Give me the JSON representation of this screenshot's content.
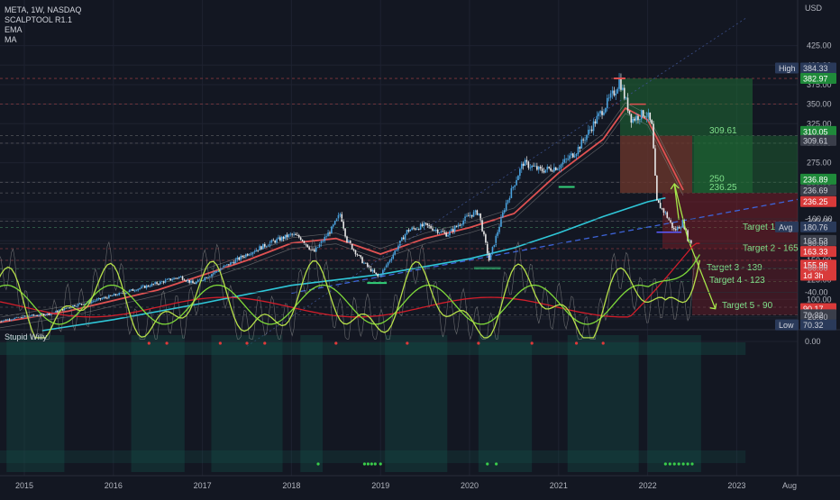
{
  "header": {
    "symbol_line": "META, 1W, NASDAQ",
    "indicators": [
      "SCALPTOOL R1.1",
      "EMA",
      "MA"
    ],
    "currency": "USD"
  },
  "oscillator": {
    "title": "Stupid Willy",
    "ticks": [
      "0.00",
      "-20.00",
      "-40.00",
      "-60.00",
      "-80.00",
      "-100.00"
    ]
  },
  "x_axis": {
    "ticks": [
      "2015",
      "2016",
      "2017",
      "2018",
      "2019",
      "2020",
      "2021",
      "2022",
      "2023",
      "Aug"
    ]
  },
  "price_axis": {
    "ticks": [
      "425.00",
      "400.00",
      "375.00",
      "350.00",
      "325.00",
      "300.00",
      "275.00",
      "250.00",
      "225.00",
      "200.00",
      "175.00",
      "150.00",
      "125.00",
      "100.00",
      "75.00"
    ]
  },
  "badges": {
    "high_label": "High",
    "high_value": "384.33",
    "b_382": "382.97",
    "b_310": "310.05",
    "b_309": "309.61",
    "b_236a": "236.89",
    "b_236b": "236.69",
    "b_236c": "236.25",
    "avg_label": "Avg",
    "avg_value": "180.76",
    "b_163a": "163.53",
    "b_163b": "163.33",
    "b_155": "155.96",
    "b_155_sub": "1d 3h",
    "b_90": "90.17",
    "b_70": "70.32",
    "low_label": "Low",
    "low_value": "70.32"
  },
  "annotations": {
    "level_309": "309.61",
    "level_250": "250",
    "level_236": "236.25",
    "target1": "Target 1 - 192",
    "target2": "Target 2 - 165",
    "target3": "Target 3 - 139",
    "target4": "Target 4 - 123",
    "target5": "Target 5 - 90"
  },
  "colors": {
    "background": "#131722",
    "candle_up": "#4aa3df",
    "candle_down": "#e8e8e8",
    "ema_red": "#e05252",
    "ma_cyan": "#2fc7d8",
    "trend_blue": "#3d63d8",
    "support_green": "#33d17a",
    "target_lime": "#a6e84b",
    "osc_red": "#d21e2b",
    "osc_green": "#7fd93a",
    "osc_lime": "#b7e04a"
  },
  "chart_data": [
    {
      "type": "candlestick",
      "title": "META, 1W, NASDAQ",
      "ylabel": "USD",
      "ylim": [
        65,
        435
      ],
      "x_ticks": [
        "2015",
        "2016",
        "2017",
        "2018",
        "2019",
        "2020",
        "2021",
        "2022",
        "2023",
        "Aug"
      ],
      "high": 384.33,
      "low": 70.32,
      "price_path": [
        [
          2014.7,
          72
        ],
        [
          2015.0,
          78
        ],
        [
          2015.3,
          82
        ],
        [
          2015.55,
          92
        ],
        [
          2015.75,
          97
        ],
        [
          2016.0,
          105
        ],
        [
          2016.25,
          113
        ],
        [
          2016.5,
          121
        ],
        [
          2016.75,
          129
        ],
        [
          2016.9,
          120
        ],
        [
          2017.0,
          126
        ],
        [
          2017.25,
          142
        ],
        [
          2017.5,
          158
        ],
        [
          2017.75,
          172
        ],
        [
          2018.0,
          183
        ],
        [
          2018.1,
          179
        ],
        [
          2018.25,
          160
        ],
        [
          2018.45,
          190
        ],
        [
          2018.55,
          210
        ],
        [
          2018.62,
          176
        ],
        [
          2018.8,
          148
        ],
        [
          2018.98,
          128
        ],
        [
          2019.1,
          150
        ],
        [
          2019.3,
          188
        ],
        [
          2019.5,
          195
        ],
        [
          2019.75,
          183
        ],
        [
          2020.0,
          208
        ],
        [
          2020.1,
          212
        ],
        [
          2020.22,
          150
        ],
        [
          2020.4,
          220
        ],
        [
          2020.6,
          275
        ],
        [
          2020.8,
          265
        ],
        [
          2021.0,
          270
        ],
        [
          2021.2,
          290
        ],
        [
          2021.45,
          335
        ],
        [
          2021.65,
          370
        ],
        [
          2021.68,
          382
        ],
        [
          2021.82,
          330
        ],
        [
          2021.95,
          338
        ],
        [
          2022.0,
          336
        ],
        [
          2022.05,
          320
        ],
        [
          2022.1,
          225
        ],
        [
          2022.2,
          210
        ],
        [
          2022.3,
          188
        ],
        [
          2022.4,
          198
        ],
        [
          2022.45,
          178
        ],
        [
          2022.5,
          170
        ]
      ],
      "series": [
        {
          "name": "EMA",
          "points": [
            [
              2014.7,
              70
            ],
            [
              2015.5,
              85
            ],
            [
              2016.5,
              112
            ],
            [
              2017.5,
              150
            ],
            [
              2018.0,
              172
            ],
            [
              2018.5,
              178
            ],
            [
              2019.0,
              158
            ],
            [
              2019.5,
              178
            ],
            [
              2020.0,
              192
            ],
            [
              2020.5,
              210
            ],
            [
              2021.0,
              262
            ],
            [
              2021.5,
              305
            ],
            [
              2021.75,
              345
            ],
            [
              2022.0,
              330
            ],
            [
              2022.2,
              285
            ],
            [
              2022.4,
              240
            ]
          ]
        },
        {
          "name": "MA",
          "points": [
            [
              2015.2,
              60
            ],
            [
              2016.0,
              74
            ],
            [
              2017.0,
              95
            ],
            [
              2018.0,
              118
            ],
            [
              2019.0,
              132
            ],
            [
              2020.0,
              152
            ],
            [
              2020.5,
              166
            ],
            [
              2021.0,
              185
            ],
            [
              2021.5,
              206
            ],
            [
              2022.0,
              225
            ],
            [
              2022.2,
              230
            ]
          ]
        }
      ],
      "levels": [
        382.97,
        309.61,
        250,
        236.25,
        192,
        165,
        139,
        123,
        90
      ],
      "targets": [
        "Target 1 - 192",
        "Target 2 - 165",
        "Target 3 - 139",
        "Target 4 - 123",
        "Target 5 - 90"
      ]
    },
    {
      "type": "line",
      "title": "Stupid Willy",
      "ylim": [
        -100,
        0
      ],
      "x_ticks": [
        "2015",
        "2016",
        "2017",
        "2018",
        "2019",
        "2020",
        "2021",
        "2022",
        "2023",
        "Aug"
      ]
    }
  ]
}
